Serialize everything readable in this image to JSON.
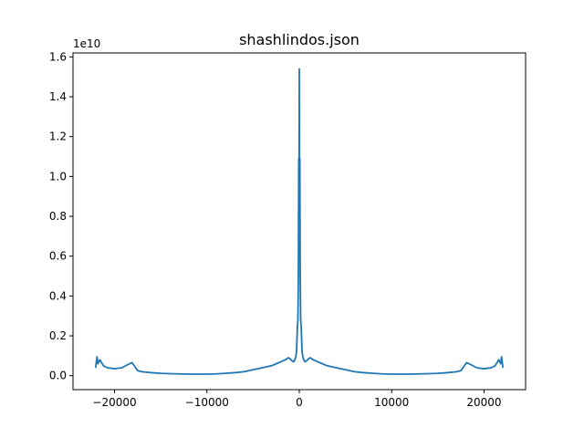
{
  "chart_data": {
    "type": "line",
    "title": "shashlindos.json",
    "xlabel": "",
    "ylabel": "",
    "y_offset_label": "1e10",
    "xlim": [
      -24500,
      24500
    ],
    "ylim": [
      -0.07,
      1.62
    ],
    "x_ticks": [
      -20000,
      -10000,
      0,
      10000,
      20000
    ],
    "x_tick_labels": [
      "−20000",
      "−10000",
      "0",
      "10000",
      "20000"
    ],
    "y_ticks": [
      0.0,
      0.2,
      0.4,
      0.6,
      0.8,
      1.0,
      1.2,
      1.4,
      1.6
    ],
    "y_tick_labels": [
      "0.0",
      "0.2",
      "0.4",
      "0.6",
      "0.8",
      "1.0",
      "1.2",
      "1.4",
      "1.6"
    ],
    "grid": false,
    "series_color": "#1f77b4",
    "series": [
      {
        "x": [
          -22050,
          -21900,
          -21800,
          -21600,
          -21200,
          -20800,
          -20000,
          -19200,
          -18400,
          -18100,
          -17500,
          -17000,
          -16000,
          -15000,
          -14000,
          -13000,
          -12000,
          -11000,
          -10000,
          -9000,
          -8000,
          -7000,
          -6000,
          -5000,
          -4500,
          -4000,
          -3500,
          -3000,
          -2500,
          -2000,
          -1500,
          -1200,
          -1000,
          -800,
          -600,
          -400,
          -300,
          -200,
          -150,
          -100,
          -60,
          -30,
          0,
          30,
          60,
          100,
          150,
          200,
          300,
          400,
          600,
          800,
          1000,
          1200,
          1500,
          2000,
          2500,
          3000,
          3500,
          4000,
          4500,
          5000,
          6000,
          7000,
          8000,
          9000,
          10000,
          11000,
          12000,
          13000,
          14000,
          15000,
          16000,
          17000,
          17500,
          18100,
          18400,
          19200,
          20000,
          20800,
          21200,
          21600,
          21800,
          21900,
          22050
        ],
        "y": [
          0.04,
          0.095,
          0.06,
          0.08,
          0.05,
          0.04,
          0.035,
          0.04,
          0.06,
          0.065,
          0.025,
          0.02,
          0.015,
          0.012,
          0.01,
          0.009,
          0.008,
          0.008,
          0.008,
          0.009,
          0.012,
          0.015,
          0.02,
          0.03,
          0.035,
          0.04,
          0.045,
          0.05,
          0.06,
          0.07,
          0.08,
          0.09,
          0.085,
          0.075,
          0.07,
          0.09,
          0.12,
          0.25,
          0.28,
          0.5,
          1.09,
          0.8,
          1.54,
          0.8,
          1.09,
          0.5,
          0.28,
          0.25,
          0.12,
          0.09,
          0.07,
          0.075,
          0.085,
          0.09,
          0.08,
          0.07,
          0.06,
          0.05,
          0.045,
          0.04,
          0.035,
          0.03,
          0.02,
          0.015,
          0.012,
          0.009,
          0.008,
          0.008,
          0.008,
          0.009,
          0.01,
          0.012,
          0.015,
          0.02,
          0.025,
          0.065,
          0.06,
          0.04,
          0.035,
          0.04,
          0.05,
          0.08,
          0.06,
          0.095,
          0.04
        ]
      }
    ]
  }
}
